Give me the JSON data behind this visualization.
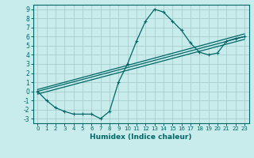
{
  "title": "",
  "xlabel": "Humidex (Indice chaleur)",
  "bg_color": "#c8ecec",
  "grid_color": "#aacccc",
  "line_color": "#006666",
  "xlim": [
    -0.5,
    23.5
  ],
  "ylim": [
    -3.5,
    9.5
  ],
  "xticks": [
    0,
    1,
    2,
    3,
    4,
    5,
    6,
    7,
    8,
    9,
    10,
    11,
    12,
    13,
    14,
    15,
    16,
    17,
    18,
    19,
    20,
    21,
    22,
    23
  ],
  "yticks": [
    -3,
    -2,
    -1,
    0,
    1,
    2,
    3,
    4,
    5,
    6,
    7,
    8,
    9
  ],
  "line1_x": [
    0,
    1,
    2,
    3,
    4,
    5,
    6,
    7,
    8,
    9,
    10,
    11,
    12,
    13,
    14,
    15,
    16,
    17,
    18,
    19,
    20,
    21,
    22,
    23
  ],
  "line1_y": [
    0,
    -1,
    -1.8,
    -2.2,
    -2.5,
    -2.5,
    -2.5,
    -3.0,
    -2.2,
    1.0,
    3.0,
    5.5,
    7.7,
    9.0,
    8.7,
    7.7,
    6.7,
    5.3,
    4.3,
    4.0,
    4.2,
    5.5,
    5.8,
    6.0
  ],
  "line2_x": [
    0,
    23
  ],
  "line2_y": [
    0,
    6.0
  ],
  "line3_x": [
    0,
    23
  ],
  "line3_y": [
    -0.3,
    5.7
  ],
  "line4_x": [
    0,
    23
  ],
  "line4_y": [
    0.2,
    6.3
  ]
}
